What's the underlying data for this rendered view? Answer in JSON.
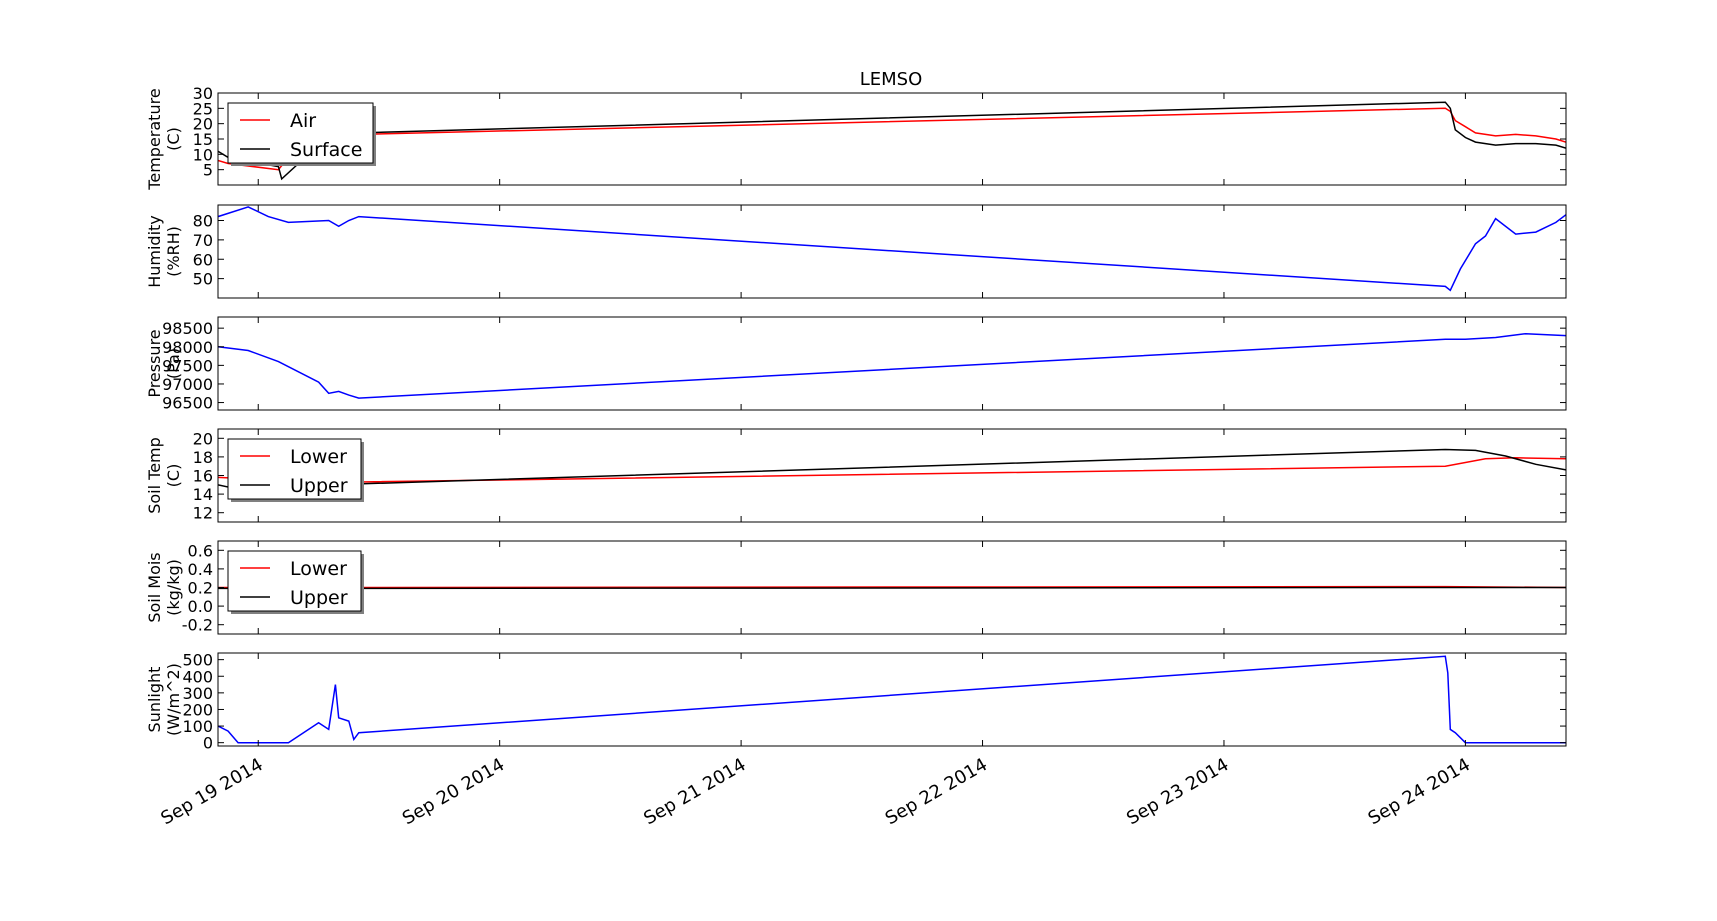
{
  "chart_data": {
    "type": "line",
    "title": "LEMSO",
    "x_unit": "date",
    "x_ticks": [
      "Sep 19 2014",
      "Sep 20 2014",
      "Sep 21 2014",
      "Sep 22 2014",
      "Sep 23 2014",
      "Sep 24 2014"
    ],
    "xlim": [
      "2014-09-18T20:00",
      "2014-09-24T10:00"
    ],
    "grid": false,
    "panels": [
      {
        "ylabel": "Temperature\n(C)",
        "ylim": [
          0,
          30
        ],
        "yticks": [
          5,
          10,
          15,
          20,
          25,
          30
        ],
        "legend": "upper left",
        "series": [
          {
            "name": "Air",
            "color": "#ff0000",
            "x": [
              "2014-09-18T20:00",
              "2014-09-18T21:00",
              "2014-09-19T02:00",
              "2014-09-19T02:30",
              "2014-09-19T05:00",
              "2014-09-19T07:00",
              "2014-09-19T09:00",
              "2014-09-19T10:00",
              "2014-09-23T22:00",
              "2014-09-23T22:30",
              "2014-09-23T23:00",
              "2014-09-24T00:00",
              "2014-09-24T01:00",
              "2014-09-24T03:00",
              "2014-09-24T05:00",
              "2014-09-24T07:00",
              "2014-09-24T09:00",
              "2014-09-24T10:00"
            ],
            "y": [
              8,
              7,
              5,
              7,
              11,
              14,
              16,
              16.5,
              25,
              24,
              21,
              19,
              17,
              16,
              16.5,
              16,
              15,
              14
            ]
          },
          {
            "name": "Surface",
            "color": "#000000",
            "x": [
              "2014-09-18T20:00",
              "2014-09-18T21:00",
              "2014-09-19T02:00",
              "2014-09-19T02:20",
              "2014-09-19T05:00",
              "2014-09-19T07:00",
              "2014-09-19T08:00",
              "2014-09-19T10:00",
              "2014-09-23T22:00",
              "2014-09-23T22:30",
              "2014-09-23T23:00",
              "2014-09-24T00:00",
              "2014-09-24T01:00",
              "2014-09-24T03:00",
              "2014-09-24T05:00",
              "2014-09-24T07:00",
              "2014-09-24T09:00",
              "2014-09-24T10:00"
            ],
            "y": [
              11,
              9,
              6,
              2,
              10,
              15,
              17,
              17,
              27,
              25,
              18,
              15.5,
              14,
              13,
              13.5,
              13.5,
              13,
              12
            ]
          }
        ]
      },
      {
        "ylabel": "Humidity\n(%RH)",
        "ylim": [
          40,
          88
        ],
        "yticks": [
          50,
          60,
          70,
          80
        ],
        "series": [
          {
            "name": "",
            "color": "#0000ff",
            "x": [
              "2014-09-18T20:00",
              "2014-09-18T23:00",
              "2014-09-19T01:00",
              "2014-09-19T03:00",
              "2014-09-19T07:00",
              "2014-09-19T08:00",
              "2014-09-19T09:00",
              "2014-09-19T10:00",
              "2014-09-23T22:00",
              "2014-09-23T22:30",
              "2014-09-23T23:30",
              "2014-09-24T01:00",
              "2014-09-24T02:00",
              "2014-09-24T03:00",
              "2014-09-24T05:00",
              "2014-09-24T07:00",
              "2014-09-24T09:00",
              "2014-09-24T10:00"
            ],
            "y": [
              82,
              87,
              82,
              79,
              80,
              77,
              80,
              82,
              46,
              44,
              55,
              68,
              72,
              81,
              73,
              74,
              79,
              83
            ]
          }
        ]
      },
      {
        "ylabel": "Pressure\n(Pa)",
        "ylim": [
          96300,
          98800
        ],
        "yticks": [
          96500,
          97000,
          97500,
          98000,
          98500
        ],
        "series": [
          {
            "name": "",
            "color": "#0000ff",
            "x": [
              "2014-09-18T20:00",
              "2014-09-18T23:00",
              "2014-09-19T02:00",
              "2014-09-19T06:00",
              "2014-09-19T07:00",
              "2014-09-19T08:00",
              "2014-09-19T09:00",
              "2014-09-19T10:00",
              "2014-09-23T22:00",
              "2014-09-24T00:00",
              "2014-09-24T03:00",
              "2014-09-24T06:00",
              "2014-09-24T10:00"
            ],
            "y": [
              98000,
              97900,
              97600,
              97050,
              96750,
              96800,
              96700,
              96620,
              98200,
              98200,
              98250,
              98350,
              98300
            ]
          }
        ]
      },
      {
        "ylabel": "Soil Temp\n(C)",
        "ylim": [
          11,
          21
        ],
        "yticks": [
          12,
          14,
          16,
          18,
          20
        ],
        "legend": "upper left",
        "series": [
          {
            "name": "Lower",
            "color": "#ff0000",
            "x": [
              "2014-09-18T20:00",
              "2014-09-19T04:00",
              "2014-09-19T07:00",
              "2014-09-19T09:00",
              "2014-09-19T10:00",
              "2014-09-23T22:00",
              "2014-09-24T02:00",
              "2014-09-24T05:00",
              "2014-09-24T10:00"
            ],
            "y": [
              15.8,
              15.4,
              15.2,
              15.3,
              15.3,
              17,
              17.8,
              17.9,
              17.8
            ]
          },
          {
            "name": "Upper",
            "color": "#000000",
            "x": [
              "2014-09-18T20:00",
              "2014-09-18T23:00",
              "2014-09-19T06:00",
              "2014-09-19T09:00",
              "2014-09-19T10:00",
              "2014-09-23T22:00",
              "2014-09-24T01:00",
              "2014-09-24T04:00",
              "2014-09-24T07:00",
              "2014-09-24T10:00"
            ],
            "y": [
              15,
              14.3,
              14.2,
              15,
              15.1,
              18.8,
              18.7,
              18.1,
              17.2,
              16.6
            ]
          }
        ]
      },
      {
        "ylabel": "Soil Mois\n(kg/kg)",
        "ylim": [
          -0.3,
          0.7
        ],
        "yticks": [
          -0.2,
          0.0,
          0.2,
          0.4,
          0.6
        ],
        "legend": "upper left",
        "series": [
          {
            "name": "Lower",
            "color": "#ff0000",
            "x": [
              "2014-09-18T20:00",
              "2014-09-19T10:00",
              "2014-09-23T22:00",
              "2014-09-24T10:00"
            ],
            "y": [
              0.2,
              0.2,
              0.21,
              0.2
            ]
          },
          {
            "name": "Upper",
            "color": "#000000",
            "x": [
              "2014-09-18T20:00",
              "2014-09-19T10:00",
              "2014-09-23T22:00",
              "2014-09-24T10:00"
            ],
            "y": [
              0.19,
              0.19,
              0.2,
              0.2
            ]
          }
        ]
      },
      {
        "ylabel": "Sunlight\n(W/m^2)",
        "ylim": [
          -20,
          540
        ],
        "yticks": [
          0,
          100,
          200,
          300,
          400,
          500
        ],
        "series": [
          {
            "name": "",
            "color": "#0000ff",
            "x": [
              "2014-09-18T20:00",
              "2014-09-18T21:00",
              "2014-09-18T22:00",
              "2014-09-19T03:00",
              "2014-09-19T06:00",
              "2014-09-19T07:00",
              "2014-09-19T07:40",
              "2014-09-19T08:00",
              "2014-09-19T09:00",
              "2014-09-19T09:30",
              "2014-09-19T10:00",
              "2014-09-23T22:00",
              "2014-09-23T22:15",
              "2014-09-23T22:30",
              "2014-09-23T23:00",
              "2014-09-24T00:00",
              "2014-09-24T01:00",
              "2014-09-24T10:00"
            ],
            "y": [
              100,
              70,
              0,
              0,
              120,
              80,
              350,
              150,
              130,
              20,
              60,
              520,
              420,
              80,
              60,
              0,
              0,
              0
            ]
          }
        ]
      }
    ]
  }
}
